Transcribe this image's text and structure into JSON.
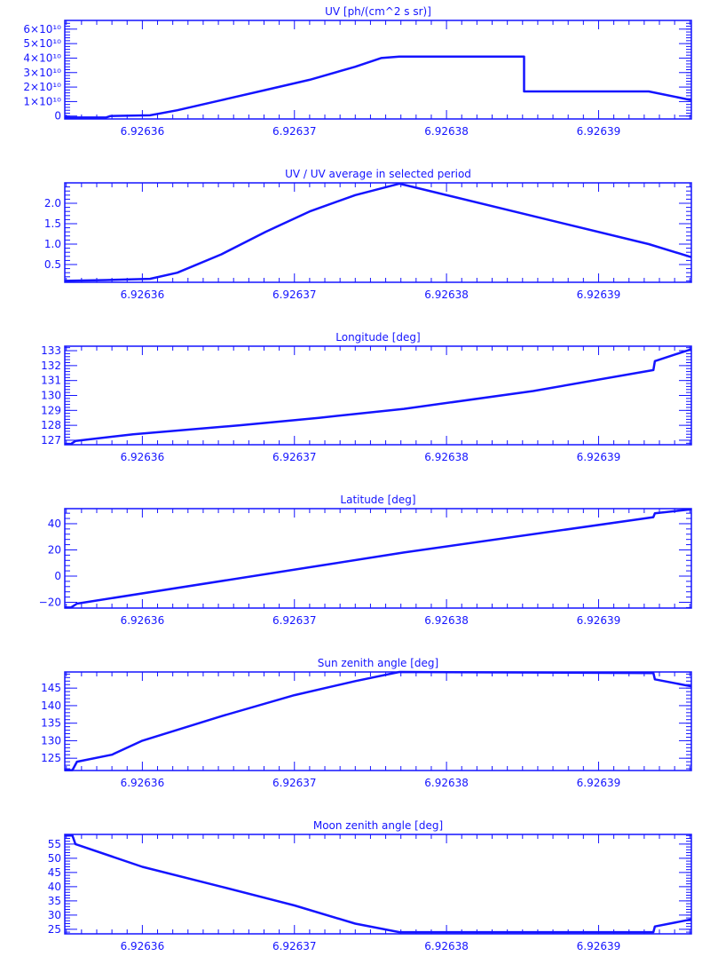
{
  "color": "#1414ff",
  "chart_data": [
    {
      "type": "line",
      "title": "UV [ph/(cm^2 s sr)]",
      "xlim": [
        6.9263549,
        6.9263961
      ],
      "ylim": [
        -2000000000.0,
        66000000000.0
      ],
      "xticks": [
        6.92636,
        6.92637,
        6.92638,
        6.92639
      ],
      "xtick_labels": [
        "6.92636",
        "6.92637",
        "6.92638",
        "6.92639"
      ],
      "yticks": [
        0,
        10000000000.0,
        20000000000.0,
        30000000000.0,
        40000000000.0,
        50000000000.0,
        60000000000.0
      ],
      "ytick_labels": [
        "0",
        "1×10¹⁰",
        "2×10¹⁰",
        "3×10¹⁰",
        "4×10¹⁰",
        "5×10¹⁰",
        "6×10¹⁰"
      ],
      "x": [
        6.9263549,
        6.9263576,
        6.9263579,
        6.9263605,
        6.9263623,
        6.9263652,
        6.9263681,
        6.926371,
        6.926374,
        6.9263757,
        6.9263769,
        6.9263851,
        6.9263851,
        6.9263933,
        6.9263961
      ],
      "y": [
        -1000000000.0,
        -1000000000.0,
        0,
        500000000.0,
        4000000000.0,
        11000000000.0,
        18000000000.0,
        25000000000.0,
        34000000000.0,
        40000000000.0,
        41000000000.0,
        41000000000.0,
        17000000000.0,
        17000000000.0,
        11000000000.0
      ]
    },
    {
      "type": "line",
      "title": "UV / UV average in selected period",
      "xlim": [
        6.9263549,
        6.9263961
      ],
      "ylim": [
        0.065,
        2.5
      ],
      "xticks": [
        6.92636,
        6.92637,
        6.92638,
        6.92639
      ],
      "xtick_labels": [
        "6.92636",
        "6.92637",
        "6.92638",
        "6.92639"
      ],
      "yticks": [
        0.5,
        1.0,
        1.5,
        2.0
      ],
      "ytick_labels": [
        "0.5",
        "1.0",
        "1.5",
        "2.0"
      ],
      "x": [
        6.9263549,
        6.9263576,
        6.9263605,
        6.9263623,
        6.9263652,
        6.9263681,
        6.926371,
        6.926374,
        6.9263769,
        6.9263933,
        6.9263961
      ],
      "y": [
        0.1,
        0.12,
        0.15,
        0.3,
        0.75,
        1.3,
        1.8,
        2.2,
        2.48,
        1.0,
        0.68
      ]
    },
    {
      "type": "line",
      "title": "Longitude [deg]",
      "xlim": [
        6.9263549,
        6.9263961
      ],
      "ylim": [
        126.7,
        133.3
      ],
      "xticks": [
        6.92636,
        6.92637,
        6.92638,
        6.92639
      ],
      "xtick_labels": [
        "6.92636",
        "6.92637",
        "6.92638",
        "6.92639"
      ],
      "yticks": [
        127,
        128,
        129,
        130,
        131,
        132,
        133
      ],
      "ytick_labels": [
        "127",
        "128",
        "129",
        "130",
        "131",
        "132",
        "133"
      ],
      "x": [
        6.9263549,
        6.9263553,
        6.9263556,
        6.9263594,
        6.9263664,
        6.9263716,
        6.9263772,
        6.9263857,
        6.9263936,
        6.9263937,
        6.9263961
      ],
      "y": [
        126.75,
        126.75,
        126.95,
        127.4,
        128.0,
        128.5,
        129.1,
        130.3,
        131.7,
        132.3,
        133.1
      ]
    },
    {
      "type": "line",
      "title": "Latitude [deg]",
      "xlim": [
        6.9263549,
        6.9263961
      ],
      "ylim": [
        -24.4,
        51.5
      ],
      "xticks": [
        6.92636,
        6.92637,
        6.92638,
        6.92639
      ],
      "xtick_labels": [
        "6.92636",
        "6.92637",
        "6.92638",
        "6.92639"
      ],
      "yticks": [
        -20,
        0,
        20,
        40
      ],
      "ytick_labels": [
        "−20",
        "0",
        "20",
        "40"
      ],
      "x": [
        6.9263549,
        6.9263553,
        6.9263557,
        6.9263772,
        6.9263936,
        6.9263937,
        6.9263961
      ],
      "y": [
        -24,
        -24,
        -21,
        18,
        45,
        48,
        51
      ]
    },
    {
      "type": "line",
      "title": "Sun zenith angle [deg]",
      "xlim": [
        6.9263549,
        6.9263961
      ],
      "ylim": [
        121.5,
        149.6
      ],
      "xticks": [
        6.92636,
        6.92637,
        6.92638,
        6.92639
      ],
      "xtick_labels": [
        "6.92636",
        "6.92637",
        "6.92638",
        "6.92639"
      ],
      "yticks": [
        125,
        130,
        135,
        140,
        145
      ],
      "ytick_labels": [
        "125",
        "130",
        "135",
        "140",
        "145"
      ],
      "x": [
        6.9263549,
        6.9263554,
        6.9263557,
        6.926358,
        6.92636,
        6.9263652,
        6.92637,
        6.926374,
        6.9263769,
        6.9263936,
        6.9263937,
        6.9263961
      ],
      "y": [
        121.6,
        121.6,
        124,
        126,
        130,
        137,
        143,
        147,
        149.6,
        149.3,
        147.5,
        145.5
      ]
    },
    {
      "type": "line",
      "title": "Moon zenith angle [deg]",
      "xlim": [
        6.9263549,
        6.9263961
      ],
      "ylim": [
        23.4,
        58.4
      ],
      "xticks": [
        6.92636,
        6.92637,
        6.92638,
        6.92639
      ],
      "xtick_labels": [
        "6.92636",
        "6.92637",
        "6.92638",
        "6.92639"
      ],
      "yticks": [
        25,
        30,
        35,
        40,
        45,
        50,
        55
      ],
      "ytick_labels": [
        "25",
        "30",
        "35",
        "40",
        "45",
        "50",
        "55"
      ],
      "x": [
        6.9263549,
        6.9263554,
        6.9263556,
        6.92636,
        6.9263652,
        6.92637,
        6.926374,
        6.9263769,
        6.9263936,
        6.9263937,
        6.9263961
      ],
      "y": [
        58,
        58,
        55,
        47,
        40,
        33.4,
        27,
        24,
        24,
        26,
        28.5
      ]
    }
  ]
}
